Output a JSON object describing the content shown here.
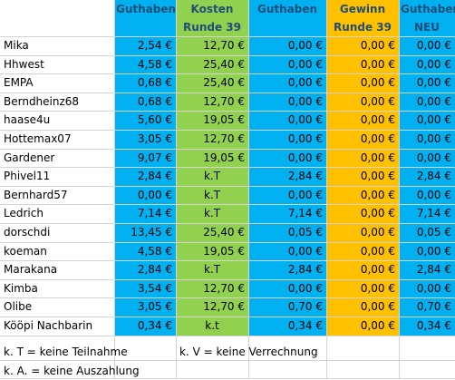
{
  "header": {
    "row1": [
      "",
      "Guthaben",
      "Kosten",
      "Guthaben",
      "Gewinn",
      "Guthaber"
    ],
    "row2": [
      "",
      "",
      "Runde 39",
      "",
      "Runde 39",
      "NEU"
    ]
  },
  "rows": [
    [
      "Mika",
      "2,54 €",
      "12,70 €",
      "0,00 €",
      "0,00 €",
      "0,00 €"
    ],
    [
      "Hhwest",
      "4,58 €",
      "25,40 €",
      "0,00 €",
      "0,00 €",
      "0,00 €"
    ],
    [
      "EMPA",
      "0,68 €",
      "25,40 €",
      "0,00 €",
      "0,00 €",
      "0,00 €"
    ],
    [
      "Berndheinz68",
      "0,68 €",
      "12,70 €",
      "0,00 €",
      "0,00 €",
      "0,00 €"
    ],
    [
      "haase4u",
      "5,60 €",
      "19,05 €",
      "0,00 €",
      "0,00 €",
      "0,00 €"
    ],
    [
      "Hottemax07",
      "3,05 €",
      "12,70 €",
      "0,00 €",
      "0,00 €",
      "0,00 €"
    ],
    [
      "Gardener",
      "9,07 €",
      "19,05 €",
      "0,00 €",
      "0,00 €",
      "0,00 €"
    ],
    [
      "Phivel11",
      "2,84 €",
      "k.T",
      "2,84 €",
      "0,00 €",
      "2,84 €"
    ],
    [
      "Bernhard57",
      "0,00 €",
      "k.T",
      "0,00 €",
      "0,00 €",
      "0,00 €"
    ],
    [
      "Ledrich",
      "7,14 €",
      "k.T",
      "7,14 €",
      "0,00 €",
      "7,14 €"
    ],
    [
      "dorschdi",
      "13,45 €",
      "25,40 €",
      "0,05 €",
      "0,00 €",
      "0,05 €"
    ],
    [
      "koeman",
      "4,58 €",
      "19,05 €",
      "0,00 €",
      "0,00 €",
      "0,00 €"
    ],
    [
      "Marakana",
      "2,84 €",
      "k.T",
      "2,84 €",
      "0,00 €",
      "2,84 €"
    ],
    [
      "Kimba",
      "3,54 €",
      "12,70 €",
      "0,00 €",
      "0,00 €",
      "0,00 €"
    ],
    [
      "Olibe",
      "3,05 €",
      "12,70 €",
      "0,70 €",
      "0,00 €",
      "0,70 €"
    ],
    [
      "Kööpi Nachbarin",
      "0,34 €",
      "k.t",
      "0,34 €",
      "0,00 €",
      "0,34 €"
    ]
  ],
  "legend": {
    "kt": "k. T = keine Teilnahme",
    "kv": "k. V = keine Verrechnung",
    "ka": "k. A. = keine Auszahlung"
  },
  "colors": {
    "blue": "#00b0f0",
    "green": "#92d050",
    "orange": "#ffc000"
  }
}
